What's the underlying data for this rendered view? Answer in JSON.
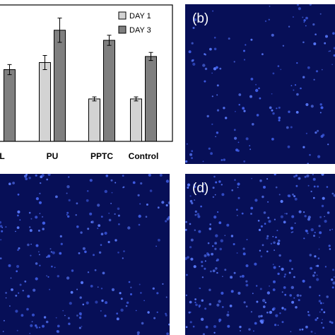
{
  "chart_data": {
    "type": "bar",
    "categories": [
      "L",
      "PU",
      "PPTC",
      "Control"
    ],
    "series": [
      {
        "name": "DAY 1",
        "values": [
          null,
          0.78,
          0.42,
          0.42
        ],
        "errors": [
          null,
          0.07,
          0.02,
          0.02
        ],
        "color": "#d3d3d3"
      },
      {
        "name": "DAY 3",
        "values": [
          0.71,
          1.1,
          1.0,
          0.84
        ],
        "errors": [
          0.05,
          0.12,
          0.05,
          0.04
        ],
        "color": "#7f7f7f"
      }
    ],
    "title": "",
    "xlabel": "",
    "ylabel": "",
    "ylim": [
      0,
      1.35
    ],
    "legend": "top-right",
    "grid": false
  },
  "panels": [
    {
      "id": "b",
      "label": "(b)"
    },
    {
      "id": "c",
      "label": ""
    },
    {
      "id": "d",
      "label": "(d)"
    }
  ],
  "colors": {
    "micrograph_background": "#050a46",
    "nuclei": "#4a6cff"
  }
}
